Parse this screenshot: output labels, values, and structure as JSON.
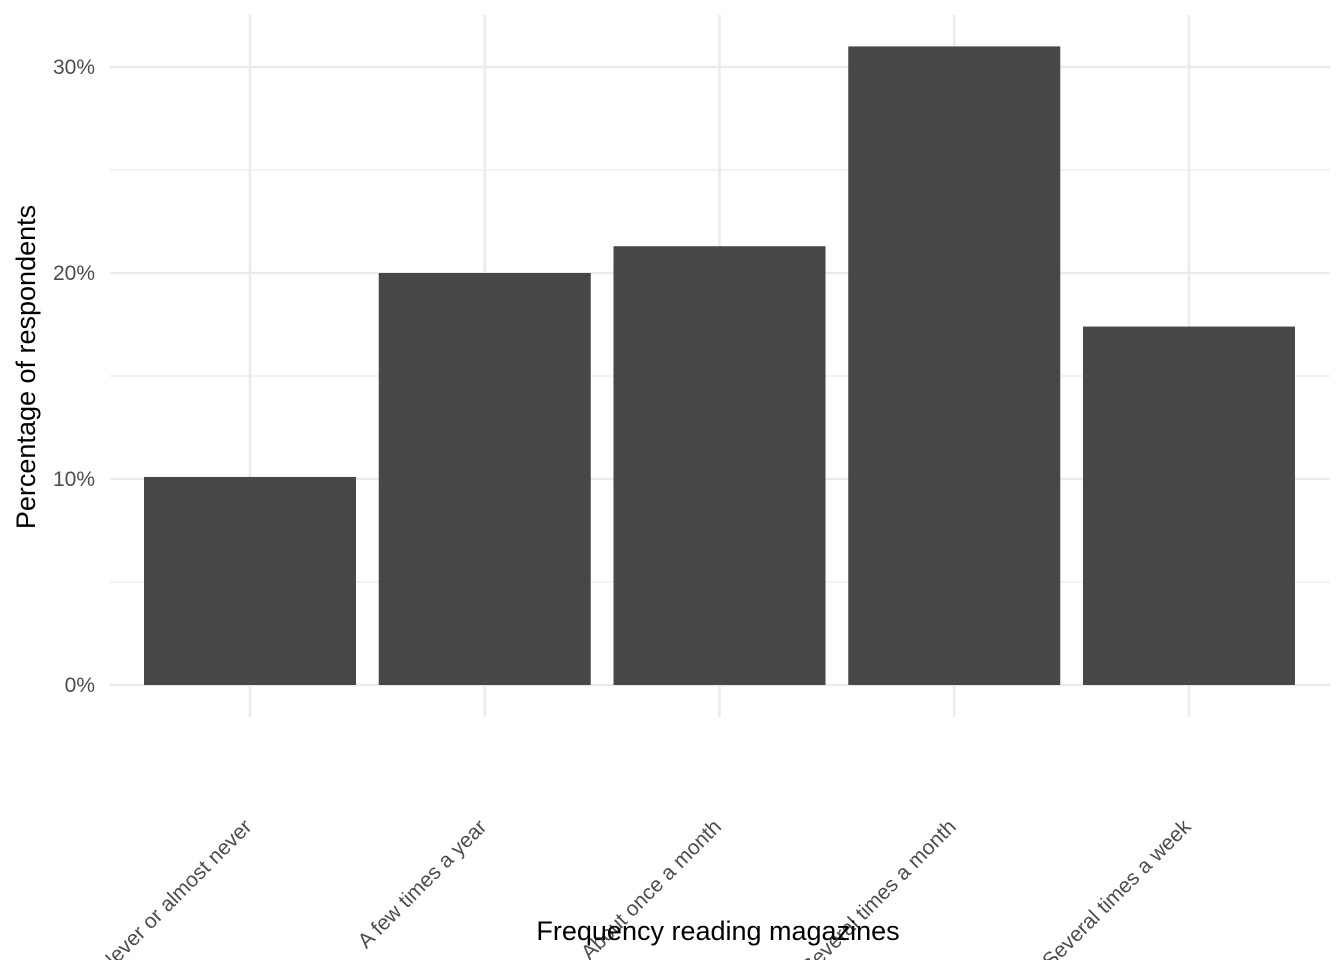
{
  "chart_data": {
    "type": "bar",
    "title": "",
    "xlabel": "Frequency reading magazines",
    "ylabel": "Percentage of respondents",
    "categories": [
      "Never or almost never",
      "A few times a year",
      "About once a month",
      "Several times a month",
      "Several times a week"
    ],
    "values": [
      10.1,
      20.0,
      21.3,
      31.0,
      17.4
    ],
    "ylim": [
      0,
      32.5
    ],
    "yticks": [
      0,
      10,
      20,
      30
    ],
    "ytick_labels": [
      "0%",
      "10%",
      "20%",
      "30%"
    ],
    "grid": true,
    "legend": "none",
    "colors": {
      "bar": "#474747",
      "grid": "#ebebeb",
      "background": "#ffffff"
    }
  }
}
